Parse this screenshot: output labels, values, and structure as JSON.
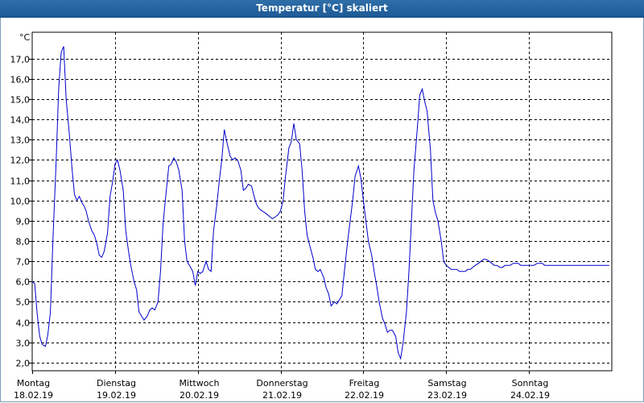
{
  "window": {
    "title": "Temperatur [°C] skaliert"
  },
  "chart_data": {
    "type": "line",
    "title": "Temperatur [°C] skaliert",
    "ylabel": "°C",
    "xlabel": "",
    "ylim": [
      1.6,
      18.3
    ],
    "xlim": [
      0,
      7
    ],
    "x_unit": "days since 18.02.19 00:00",
    "grid": true,
    "line_color": "#0000cc",
    "y_ticks": [
      "2,0",
      "3,0",
      "4,0",
      "5,0",
      "6,0",
      "7,0",
      "8,0",
      "9,0",
      "10,0",
      "11,0",
      "12,0",
      "13,0",
      "14,0",
      "15,0",
      "16,0",
      "17,0"
    ],
    "x_ticks": [
      {
        "day": "Montag",
        "date": "18.02.19"
      },
      {
        "day": "Dienstag",
        "date": "19.02.19"
      },
      {
        "day": "Mittwoch",
        "date": "20.02.19"
      },
      {
        "day": "Donnerstag",
        "date": "21.02.19"
      },
      {
        "day": "Freitag",
        "date": "22.02.19"
      },
      {
        "day": "Samstag",
        "date": "23.02.19"
      },
      {
        "day": "Sonntag",
        "date": "24.02.19"
      }
    ],
    "series": [
      {
        "name": "Temperatur",
        "x": [
          0.0,
          0.03,
          0.06,
          0.09,
          0.12,
          0.16,
          0.19,
          0.22,
          0.25,
          0.29,
          0.32,
          0.35,
          0.38,
          0.41,
          0.45,
          0.48,
          0.51,
          0.54,
          0.57,
          0.6,
          0.63,
          0.65,
          0.68,
          0.72,
          0.75,
          0.78,
          0.81,
          0.84,
          0.87,
          0.91,
          0.94,
          0.97,
          1.0,
          1.03,
          1.06,
          1.1,
          1.13,
          1.16,
          1.19,
          1.23,
          1.26,
          1.29,
          1.32,
          1.35,
          1.39,
          1.42,
          1.45,
          1.48,
          1.52,
          1.55,
          1.58,
          1.61,
          1.65,
          1.68,
          1.71,
          1.74,
          1.77,
          1.81,
          1.84,
          1.87,
          1.9,
          1.94,
          1.97,
          2.0,
          2.03,
          2.06,
          2.1,
          2.13,
          2.16,
          2.19,
          2.23,
          2.26,
          2.29,
          2.32,
          2.35,
          2.39,
          2.42,
          2.45,
          2.48,
          2.52,
          2.55,
          2.58,
          2.61,
          2.65,
          2.68,
          2.71,
          2.74,
          2.77,
          2.81,
          2.84,
          2.87,
          2.9,
          2.94,
          2.97,
          3.0,
          3.03,
          3.06,
          3.1,
          3.13,
          3.16,
          3.19,
          3.23,
          3.26,
          3.29,
          3.32,
          3.35,
          3.39,
          3.42,
          3.45,
          3.48,
          3.52,
          3.55,
          3.58,
          3.61,
          3.65,
          3.68,
          3.71,
          3.74,
          3.77,
          3.81,
          3.84,
          3.87,
          3.9,
          3.94,
          3.97,
          4.0,
          4.03,
          4.06,
          4.1,
          4.13,
          4.16,
          4.19,
          4.23,
          4.26,
          4.29,
          4.32,
          4.35,
          4.39,
          4.42,
          4.45,
          4.48,
          4.52,
          4.55,
          4.58,
          4.61,
          4.65,
          4.68,
          4.71,
          4.74,
          4.77,
          4.81,
          4.84,
          4.87,
          4.9,
          4.94,
          4.97,
          5.0,
          5.03,
          5.06,
          5.1,
          5.13,
          5.16,
          5.19,
          5.23,
          5.26,
          5.29,
          5.32,
          5.35,
          5.39,
          5.42,
          5.45,
          5.48,
          5.52,
          5.55,
          5.58,
          5.61,
          5.65,
          5.68,
          5.71,
          5.74,
          5.77,
          5.81,
          5.84,
          5.87,
          5.9,
          5.94,
          5.97,
          6.0,
          6.03,
          6.06,
          6.1,
          6.13,
          6.16,
          6.19,
          6.23,
          6.26,
          6.29,
          6.32,
          6.35,
          6.39,
          6.42,
          6.45,
          6.48,
          6.52,
          6.55,
          6.58,
          6.61,
          6.65,
          6.68,
          6.71,
          6.74,
          6.77,
          6.81,
          6.84,
          6.87,
          6.9,
          6.94,
          6.97
        ],
        "values": [
          6.0,
          5.9,
          4.4,
          3.3,
          2.9,
          2.8,
          3.4,
          4.5,
          8.0,
          12.0,
          15.5,
          17.3,
          17.6,
          15.0,
          13.2,
          11.6,
          10.3,
          10.0,
          10.2,
          9.9,
          9.7,
          9.5,
          9.0,
          8.5,
          8.3,
          7.9,
          7.3,
          7.2,
          7.5,
          8.4,
          10.2,
          10.9,
          11.8,
          12.0,
          11.5,
          10.5,
          8.5,
          7.6,
          6.8,
          6.0,
          5.6,
          4.5,
          4.3,
          4.1,
          4.3,
          4.6,
          4.7,
          4.6,
          5.0,
          6.5,
          8.8,
          10.1,
          11.7,
          11.8,
          12.1,
          11.9,
          11.5,
          10.5,
          8.0,
          7.0,
          6.8,
          6.5,
          5.8,
          6.5,
          6.4,
          6.5,
          7.0,
          6.6,
          6.5,
          8.5,
          9.8,
          11.0,
          12.0,
          13.5,
          12.9,
          12.2,
          12.0,
          12.1,
          12.0,
          11.5,
          10.5,
          10.6,
          10.8,
          10.7,
          10.2,
          9.8,
          9.6,
          9.5,
          9.4,
          9.3,
          9.2,
          9.1,
          9.2,
          9.3,
          9.5,
          10.0,
          11.2,
          12.6,
          12.9,
          13.8,
          13.0,
          12.8,
          11.5,
          9.5,
          8.3,
          7.8,
          7.2,
          6.6,
          6.5,
          6.6,
          6.2,
          5.7,
          5.4,
          4.8,
          5.0,
          4.9,
          5.1,
          5.3,
          6.5,
          8.0,
          9.0,
          10.0,
          11.2,
          11.7,
          11.1,
          10.0,
          9.0,
          8.0,
          7.3,
          6.5,
          5.8,
          5.0,
          4.2,
          3.9,
          3.5,
          3.6,
          3.6,
          3.3,
          2.5,
          2.2,
          3.0,
          4.5,
          6.5,
          9.0,
          11.5,
          13.5,
          15.2,
          15.5,
          14.9,
          14.4,
          12.5,
          10.0,
          9.4,
          9.0,
          8.0,
          7.0,
          6.8,
          6.7,
          6.6,
          6.6,
          6.6,
          6.5,
          6.5,
          6.5,
          6.6,
          6.6,
          6.7,
          6.8,
          6.9,
          7.0,
          7.1,
          7.1,
          7.0,
          6.9,
          6.8,
          6.8,
          6.7,
          6.7,
          6.8,
          6.8,
          6.8,
          6.9,
          6.9,
          6.9,
          6.8,
          6.8,
          6.8,
          6.8,
          6.8,
          6.8,
          6.9,
          6.9,
          6.9,
          6.8,
          6.8,
          6.8,
          6.8,
          6.8,
          6.8,
          6.8,
          6.8,
          6.8,
          6.8,
          6.8,
          6.8,
          6.8,
          6.8,
          6.8,
          6.8,
          6.8,
          6.8,
          6.8,
          6.8,
          6.8,
          6.8,
          6.8,
          6.8,
          6.8
        ]
      }
    ]
  }
}
